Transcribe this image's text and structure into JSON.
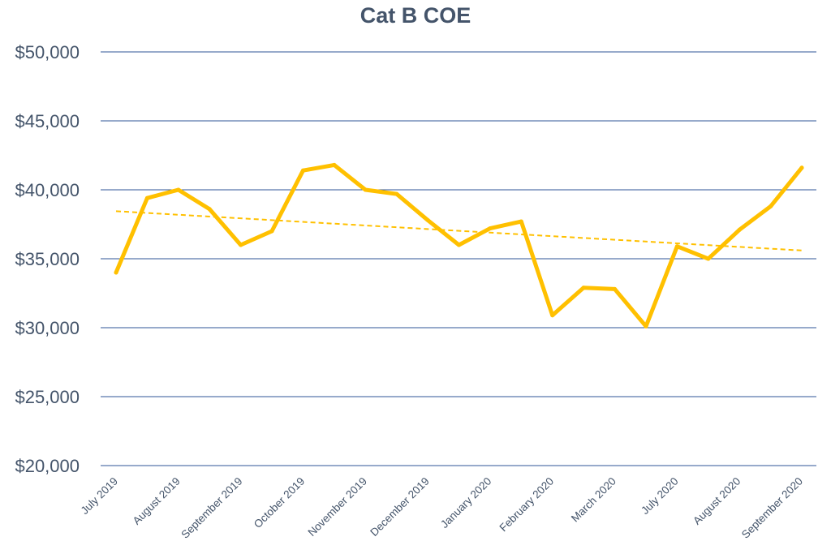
{
  "chart_data": {
    "type": "line",
    "title": "Cat B COE",
    "xlabel": "",
    "ylabel": "",
    "ylim": [
      20000,
      50000
    ],
    "ytick_values": [
      20000,
      25000,
      30000,
      35000,
      40000,
      45000,
      50000
    ],
    "ytick_labels": [
      "$20,000",
      "$25,000",
      "$30,000",
      "$35,000",
      "$40,000",
      "$45,000",
      "$50,000"
    ],
    "xtick_labels": [
      "July 2019",
      "August 2019",
      "September 2019",
      "October 2019",
      "November 2019",
      "December 2019",
      "January 2020",
      "February 2020",
      "March 2020",
      "July 2020",
      "August 2020",
      "September 2020"
    ],
    "grid": true,
    "legend": "none",
    "series": [
      {
        "values": [
          34000,
          39400,
          40000,
          38600,
          36000,
          37000,
          41400,
          41800,
          40000,
          39700,
          37800,
          36000,
          37200,
          37700,
          30900,
          32900,
          32800,
          30100,
          35900,
          35000,
          37100,
          38800,
          41600
        ],
        "color": "#ffc000"
      }
    ],
    "trendline": {
      "type": "linear",
      "start": 38450,
      "end": 35600,
      "color": "#ffc000",
      "style": "dashed"
    },
    "colors": {
      "gridline": "#2f5597",
      "text": "#44546a",
      "line": "#ffc000"
    }
  }
}
